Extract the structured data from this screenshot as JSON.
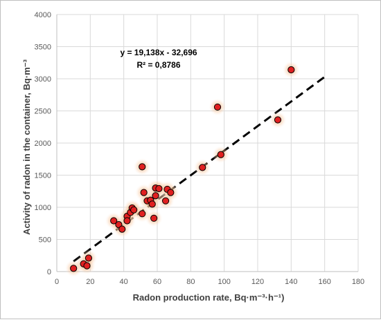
{
  "chart_data": {
    "type": "scatter",
    "xlabel": "Radon production rate, Bq·m⁻³·h⁻¹)",
    "ylabel": "Activity of radon in the container, Bq·m⁻³",
    "xlim": [
      0,
      180
    ],
    "ylim": [
      0,
      4000
    ],
    "x_ticks": [
      0,
      20,
      40,
      60,
      80,
      100,
      120,
      140,
      160,
      180
    ],
    "y_ticks": [
      0,
      500,
      1000,
      1500,
      2000,
      2500,
      3000,
      3500,
      4000
    ],
    "x_tick_labels": [
      "0",
      "20",
      "40",
      "60",
      "80",
      "100",
      "120",
      "140",
      "160",
      "180"
    ],
    "y_tick_labels": [
      "0",
      "500",
      "1000",
      "1500",
      "2000",
      "2500",
      "3000",
      "3500",
      "4000"
    ],
    "grid": true,
    "legend": "none",
    "series": [
      {
        "marker_color": "#e02020",
        "glow_color": "#f7b080",
        "points": [
          [
            10,
            50
          ],
          [
            16,
            120
          ],
          [
            18,
            90
          ],
          [
            19,
            210
          ],
          [
            34,
            790
          ],
          [
            37,
            730
          ],
          [
            39,
            660
          ],
          [
            42,
            860
          ],
          [
            42,
            790
          ],
          [
            44,
            920
          ],
          [
            45,
            990
          ],
          [
            46,
            960
          ],
          [
            51,
            900
          ],
          [
            51,
            1630
          ],
          [
            52,
            1230
          ],
          [
            54,
            1100
          ],
          [
            56,
            1110
          ],
          [
            57,
            1050
          ],
          [
            58,
            830
          ],
          [
            59,
            1180
          ],
          [
            59,
            1300
          ],
          [
            61,
            1290
          ],
          [
            65,
            1100
          ],
          [
            66,
            1280
          ],
          [
            68,
            1230
          ],
          [
            87,
            1620
          ],
          [
            96,
            2560
          ],
          [
            98,
            1820
          ],
          [
            132,
            2360
          ],
          [
            140,
            3140
          ]
        ]
      }
    ],
    "trendline": {
      "slope": 19.138,
      "intercept": -32.696,
      "x_range": [
        10,
        160
      ],
      "style": "dashed",
      "color": "#000000"
    },
    "annotations": {
      "equation": "y = 19,138x - 32,696",
      "r_squared": "R² = 0,8786"
    }
  }
}
